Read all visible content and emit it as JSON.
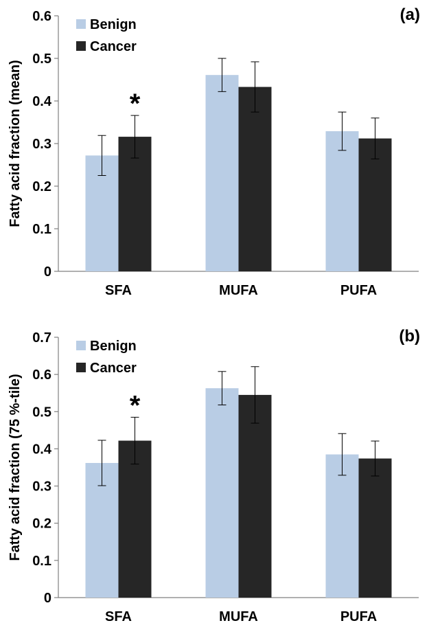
{
  "chart_data": [
    {
      "type": "bar",
      "panel_label": "(a)",
      "categories": [
        "SFA",
        "MUFA",
        "PUFA"
      ],
      "series": [
        {
          "name": "Benign",
          "values": [
            0.272,
            0.461,
            0.329
          ],
          "errors": [
            0.047,
            0.039,
            0.045
          ],
          "color": "#b9cde5"
        },
        {
          "name": "Cancer",
          "values": [
            0.316,
            0.433,
            0.312
          ],
          "errors": [
            0.05,
            0.059,
            0.048
          ],
          "color": "#262626"
        }
      ],
      "ylabel": "Fatty acid fraction (mean)",
      "xlabel": "",
      "ylim": [
        0,
        0.6
      ],
      "yticks": [
        0,
        0.1,
        0.2,
        0.3,
        0.4,
        0.5,
        0.6
      ],
      "ytick_labels": [
        "0",
        "0.1",
        "0.2",
        "0.3",
        "0.4",
        "0.5",
        "0.6"
      ],
      "annotations": [
        {
          "text": "*",
          "category": "SFA",
          "series": "Cancer"
        }
      ],
      "legend_position": "top-left",
      "grid": false
    },
    {
      "type": "bar",
      "panel_label": "(b)",
      "categories": [
        "SFA",
        "MUFA",
        "PUFA"
      ],
      "series": [
        {
          "name": "Benign",
          "values": [
            0.362,
            0.563,
            0.385
          ],
          "errors": [
            0.061,
            0.045,
            0.056
          ],
          "color": "#b9cde5"
        },
        {
          "name": "Cancer",
          "values": [
            0.422,
            0.545,
            0.374
          ],
          "errors": [
            0.063,
            0.076,
            0.047
          ],
          "color": "#262626"
        }
      ],
      "ylabel": "Fatty acid fraction (75 %-tile)",
      "xlabel": "",
      "ylim": [
        0,
        0.7
      ],
      "yticks": [
        0,
        0.1,
        0.2,
        0.3,
        0.4,
        0.5,
        0.6,
        0.7
      ],
      "ytick_labels": [
        "0",
        "0.1",
        "0.2",
        "0.3",
        "0.4",
        "0.5",
        "0.6",
        "0.7"
      ],
      "annotations": [
        {
          "text": "*",
          "category": "SFA",
          "series": "Cancer"
        }
      ],
      "legend_position": "top-left",
      "grid": false
    }
  ]
}
